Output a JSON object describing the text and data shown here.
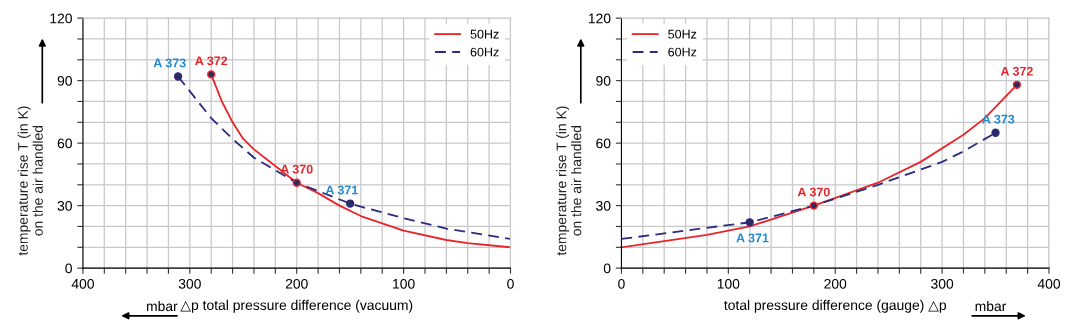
{
  "chart_data": [
    {
      "type": "line",
      "xlabel": "△p total pressure difference (vacuum)",
      "ylabel": "temperature rise T (in K)\non the air handled",
      "xlim": [
        400,
        0
      ],
      "ylim": [
        0,
        120
      ],
      "xticks": [
        400,
        {
          "value": 380,
          "label": null
        },
        {
          "value": 360,
          "label": null
        },
        {
          "value": 340,
          "label": null
        },
        {
          "value": 320,
          "label": null
        },
        300,
        {
          "value": 280,
          "label": null
        },
        {
          "value": 260,
          "label": null
        },
        {
          "value": 240,
          "label": null
        },
        {
          "value": 220,
          "label": null
        },
        200,
        {
          "value": 180,
          "label": null
        },
        {
          "value": 160,
          "label": null
        },
        {
          "value": 140,
          "label": null
        },
        {
          "value": 120,
          "label": null
        },
        100,
        {
          "value": 80,
          "label": null
        },
        {
          "value": 60,
          "label": null
        },
        {
          "value": 40,
          "label": null
        },
        {
          "value": 20,
          "label": null
        },
        0
      ],
      "yticks": [
        0,
        {
          "value": 10,
          "label": null
        },
        {
          "value": 20,
          "label": null
        },
        30,
        {
          "value": 40,
          "label": null
        },
        {
          "value": 50,
          "label": null
        },
        60,
        {
          "value": 70,
          "label": null
        },
        {
          "value": 80,
          "label": null
        },
        90,
        {
          "value": 100,
          "label": null
        },
        {
          "value": 110,
          "label": null
        },
        120
      ],
      "grid": true,
      "legend": "top right",
      "series": [
        {
          "name": "50Hz",
          "color": "#e8262a",
          "line_style": "solid",
          "x": [
            280,
            270,
            260,
            250,
            240,
            220,
            200,
            180,
            160,
            140,
            100,
            60,
            40,
            0
          ],
          "values": [
            93,
            80,
            70,
            62,
            57,
            49,
            41,
            36,
            30,
            25,
            18,
            13.5,
            12,
            10
          ]
        },
        {
          "name": "60Hz",
          "color": "#2b2b7f",
          "line_style": "dashed",
          "x": [
            311,
            280,
            260,
            240,
            200,
            180,
            150,
            140,
            100,
            60,
            0
          ],
          "values": [
            92,
            72,
            62,
            53,
            41,
            37,
            31,
            29.5,
            24,
            19,
            14
          ]
        }
      ],
      "annotations": [
        {
          "text": "A 373",
          "x": 311,
          "y": 92
        },
        {
          "text": "A 372",
          "x": 280,
          "y": 93
        },
        {
          "text": "A 370",
          "x": 200,
          "y": 41
        },
        {
          "text": "A 371",
          "x": 150,
          "y": 31
        },
        "mbar"
      ]
    },
    {
      "type": "line",
      "xlabel": "total pressure difference (gauge) △p",
      "ylabel": "temperature rise T (in K)\non the air handled",
      "xlim": [
        0,
        400
      ],
      "ylim": [
        0,
        120
      ],
      "xticks": [
        0,
        {
          "value": 20,
          "label": null
        },
        {
          "value": 40,
          "label": null
        },
        {
          "value": 60,
          "label": null
        },
        {
          "value": 80,
          "label": null
        },
        100,
        {
          "value": 120,
          "label": null
        },
        {
          "value": 140,
          "label": null
        },
        {
          "value": 160,
          "label": null
        },
        {
          "value": 180,
          "label": null
        },
        200,
        {
          "value": 220,
          "label": null
        },
        {
          "value": 240,
          "label": null
        },
        {
          "value": 260,
          "label": null
        },
        {
          "value": 280,
          "label": null
        },
        300,
        {
          "value": 320,
          "label": null
        },
        {
          "value": 340,
          "label": null
        },
        {
          "value": 360,
          "label": null
        },
        {
          "value": 380,
          "label": null
        },
        400
      ],
      "yticks": [
        0,
        {
          "value": 10,
          "label": null
        },
        {
          "value": 20,
          "label": null
        },
        30,
        {
          "value": 40,
          "label": null
        },
        {
          "value": 50,
          "label": null
        },
        60,
        {
          "value": 70,
          "label": null
        },
        {
          "value": 80,
          "label": null
        },
        90,
        {
          "value": 100,
          "label": null
        },
        {
          "value": 110,
          "label": null
        },
        120
      ],
      "grid": true,
      "legend": "top left",
      "series": [
        {
          "name": "50Hz",
          "color": "#e8262a",
          "line_style": "solid",
          "x": [
            0,
            40,
            80,
            120,
            180,
            240,
            280,
            320,
            340,
            370
          ],
          "values": [
            10,
            13,
            16,
            20,
            30,
            41,
            51,
            64,
            72,
            88
          ]
        },
        {
          "name": "60Hz",
          "color": "#2b2b7f",
          "line_style": "dashed",
          "x": [
            0,
            60,
            120,
            180,
            240,
            300,
            320,
            350
          ],
          "values": [
            14,
            18,
            22,
            30,
            40,
            51,
            56,
            65
          ]
        }
      ],
      "annotations": [
        {
          "text": "A 371",
          "x": 120,
          "y": 22
        },
        {
          "text": "A 370",
          "x": 180,
          "y": 30
        },
        {
          "text": "A 372",
          "x": 370,
          "y": 88
        },
        {
          "text": "A 373",
          "x": 350,
          "y": 65
        },
        "mbar"
      ]
    }
  ]
}
